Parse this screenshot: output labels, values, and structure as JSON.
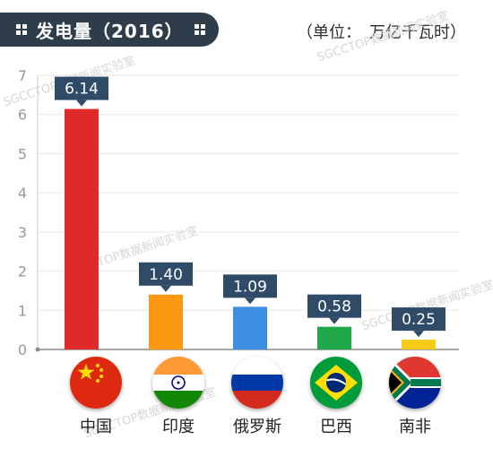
{
  "header": {
    "title": "发电量（2016）",
    "unit": "（单位：　万亿千瓦时）"
  },
  "watermarks": [
    "SGCCTOP数据新闻实验室",
    "SGCCTOP数据新闻实验室",
    "SGCCTOP数据新闻实验室",
    "SGCCTOP数据新闻实验室",
    "SGCCTOP数据新闻实验室"
  ],
  "chart_data": {
    "type": "bar",
    "title": "发电量（2016）",
    "ylabel": "万亿千瓦时",
    "categories": [
      "中国",
      "印度",
      "俄罗斯",
      "巴西",
      "南非"
    ],
    "values": [
      6.14,
      1.4,
      1.09,
      0.58,
      0.25
    ],
    "value_labels": [
      "6.14",
      "1.40",
      "1.09",
      "0.58",
      "0.25"
    ],
    "bar_colors": [
      "#e02a2a",
      "#fb9a12",
      "#3d8fe2",
      "#1ea84a",
      "#f7cb16"
    ],
    "ylim": [
      0,
      7
    ],
    "yticks": [
      "0",
      "1",
      "2",
      "3",
      "4",
      "5",
      "6",
      "7"
    ],
    "grid": true,
    "flags": [
      "china-flag-icon",
      "india-flag-icon",
      "russia-flag-icon",
      "brazil-flag-icon",
      "south-africa-flag-icon"
    ]
  }
}
